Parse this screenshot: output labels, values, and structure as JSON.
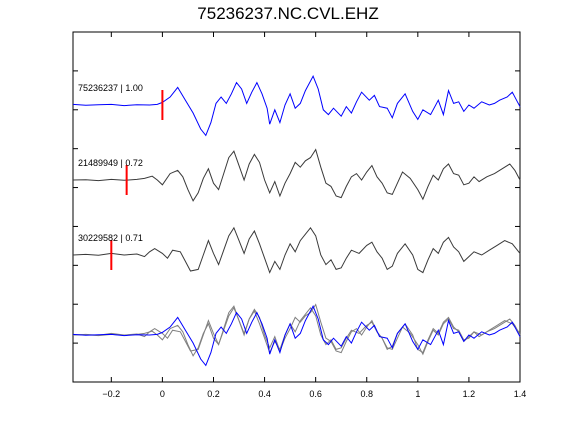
{
  "chart_data": {
    "type": "line",
    "title": "75236237.NC.CVL.EHZ",
    "xlim": [
      -0.35,
      1.4
    ],
    "xticks": [
      -0.2,
      0,
      0.2,
      0.4,
      0.6,
      0.8,
      1,
      1.2,
      1.4
    ],
    "xtick_labels": [
      "−0.2",
      "0",
      "0.2",
      "0.4",
      "0.6",
      "0.8",
      "1",
      "1.2",
      "1.4"
    ],
    "grid": false,
    "colors": {
      "reference": "#0000ff",
      "trace": "#3a3a3a",
      "overlay": "#808080",
      "pick": "#ff0000"
    },
    "traces": [
      {
        "label": "75236237 | 1.00",
        "pick_time": 0.0,
        "color": "#0000ff",
        "points": [
          [
            -0.35,
            0.02
          ],
          [
            -0.3,
            -0.01
          ],
          [
            -0.25,
            0.01
          ],
          [
            -0.2,
            0.02
          ],
          [
            -0.15,
            -0.02
          ],
          [
            -0.1,
            0.01
          ],
          [
            -0.05,
            0.0
          ],
          [
            -0.02,
            0.02
          ],
          [
            0.0,
            0.08
          ],
          [
            0.03,
            0.25
          ],
          [
            0.06,
            0.55
          ],
          [
            0.09,
            0.15
          ],
          [
            0.12,
            -0.25
          ],
          [
            0.15,
            -0.75
          ],
          [
            0.17,
            -0.95
          ],
          [
            0.19,
            -0.55
          ],
          [
            0.21,
            0.05
          ],
          [
            0.23,
            0.25
          ],
          [
            0.25,
            0.05
          ],
          [
            0.27,
            0.35
          ],
          [
            0.29,
            0.7
          ],
          [
            0.31,
            0.5
          ],
          [
            0.33,
            0.05
          ],
          [
            0.35,
            0.4
          ],
          [
            0.37,
            0.7
          ],
          [
            0.39,
            0.35
          ],
          [
            0.41,
            -0.1
          ],
          [
            0.42,
            -0.6
          ],
          [
            0.44,
            -0.15
          ],
          [
            0.46,
            -0.55
          ],
          [
            0.48,
            0.0
          ],
          [
            0.5,
            0.35
          ],
          [
            0.52,
            -0.1
          ],
          [
            0.54,
            0.05
          ],
          [
            0.56,
            0.45
          ],
          [
            0.59,
            0.9
          ],
          [
            0.61,
            0.5
          ],
          [
            0.63,
            -0.15
          ],
          [
            0.65,
            -0.3
          ],
          [
            0.67,
            -0.1
          ],
          [
            0.7,
            -0.35
          ],
          [
            0.72,
            -0.05
          ],
          [
            0.74,
            -0.25
          ],
          [
            0.76,
            0.1
          ],
          [
            0.78,
            0.4
          ],
          [
            0.81,
            0.15
          ],
          [
            0.83,
            0.3
          ],
          [
            0.85,
            -0.05
          ],
          [
            0.88,
            -0.1
          ],
          [
            0.9,
            -0.4
          ],
          [
            0.92,
            0.05
          ],
          [
            0.95,
            0.35
          ],
          [
            0.98,
            -0.2
          ],
          [
            1.0,
            -0.45
          ],
          [
            1.02,
            -0.15
          ],
          [
            1.05,
            -0.3
          ],
          [
            1.08,
            0.15
          ],
          [
            1.1,
            -0.3
          ],
          [
            1.12,
            0.45
          ],
          [
            1.14,
            0.05
          ],
          [
            1.16,
            0.1
          ],
          [
            1.18,
            -0.2
          ],
          [
            1.2,
            0.0
          ],
          [
            1.22,
            -0.1
          ],
          [
            1.25,
            0.1
          ],
          [
            1.28,
            0.0
          ],
          [
            1.3,
            0.05
          ],
          [
            1.32,
            0.15
          ],
          [
            1.35,
            0.25
          ],
          [
            1.37,
            0.4
          ],
          [
            1.39,
            0.1
          ],
          [
            1.4,
            -0.05
          ]
        ]
      },
      {
        "label": "21489949 | 0.72",
        "pick_time": -0.14,
        "color": "#3a3a3a",
        "points": [
          [
            -0.35,
            0.0
          ],
          [
            -0.3,
            0.01
          ],
          [
            -0.25,
            -0.02
          ],
          [
            -0.2,
            0.02
          ],
          [
            -0.15,
            -0.01
          ],
          [
            -0.1,
            0.02
          ],
          [
            -0.07,
            0.05
          ],
          [
            -0.04,
            0.12
          ],
          [
            -0.02,
            0.0
          ],
          [
            0.0,
            -0.15
          ],
          [
            0.03,
            0.2
          ],
          [
            0.06,
            0.3
          ],
          [
            0.08,
            0.1
          ],
          [
            0.1,
            -0.3
          ],
          [
            0.12,
            -0.65
          ],
          [
            0.14,
            -0.4
          ],
          [
            0.16,
            0.05
          ],
          [
            0.18,
            0.35
          ],
          [
            0.2,
            -0.1
          ],
          [
            0.22,
            -0.3
          ],
          [
            0.24,
            0.2
          ],
          [
            0.26,
            0.7
          ],
          [
            0.28,
            0.9
          ],
          [
            0.3,
            0.45
          ],
          [
            0.32,
            0.0
          ],
          [
            0.34,
            0.5
          ],
          [
            0.36,
            0.8
          ],
          [
            0.38,
            0.55
          ],
          [
            0.4,
            0.0
          ],
          [
            0.42,
            -0.4
          ],
          [
            0.44,
            -0.05
          ],
          [
            0.46,
            -0.5
          ],
          [
            0.48,
            -0.1
          ],
          [
            0.5,
            0.2
          ],
          [
            0.52,
            0.55
          ],
          [
            0.54,
            0.4
          ],
          [
            0.56,
            0.6
          ],
          [
            0.58,
            0.7
          ],
          [
            0.6,
            0.95
          ],
          [
            0.62,
            0.4
          ],
          [
            0.64,
            -0.1
          ],
          [
            0.66,
            -0.2
          ],
          [
            0.68,
            -0.5
          ],
          [
            0.7,
            -0.55
          ],
          [
            0.72,
            -0.2
          ],
          [
            0.74,
            0.1
          ],
          [
            0.76,
            0.2
          ],
          [
            0.78,
            0.0
          ],
          [
            0.8,
            0.25
          ],
          [
            0.82,
            0.45
          ],
          [
            0.84,
            0.1
          ],
          [
            0.86,
            -0.1
          ],
          [
            0.88,
            -0.4
          ],
          [
            0.9,
            -0.45
          ],
          [
            0.92,
            -0.1
          ],
          [
            0.94,
            0.25
          ],
          [
            0.97,
            0.05
          ],
          [
            1.0,
            -0.3
          ],
          [
            1.02,
            -0.6
          ],
          [
            1.04,
            -0.2
          ],
          [
            1.06,
            0.15
          ],
          [
            1.08,
            0.0
          ],
          [
            1.1,
            0.35
          ],
          [
            1.12,
            0.5
          ],
          [
            1.14,
            0.2
          ],
          [
            1.16,
            0.15
          ],
          [
            1.18,
            -0.15
          ],
          [
            1.2,
            -0.1
          ],
          [
            1.22,
            0.1
          ],
          [
            1.24,
            -0.05
          ],
          [
            1.27,
            0.1
          ],
          [
            1.3,
            0.2
          ],
          [
            1.33,
            0.35
          ],
          [
            1.36,
            0.5
          ],
          [
            1.38,
            0.3
          ],
          [
            1.4,
            0.0
          ]
        ]
      },
      {
        "label": "30229582 | 0.71",
        "pick_time": -0.2,
        "color": "#3a3a3a",
        "points": [
          [
            -0.35,
            0.0
          ],
          [
            -0.3,
            0.02
          ],
          [
            -0.25,
            -0.01
          ],
          [
            -0.2,
            0.05
          ],
          [
            -0.15,
            0.0
          ],
          [
            -0.1,
            0.03
          ],
          [
            -0.07,
            -0.05
          ],
          [
            -0.05,
            0.1
          ],
          [
            -0.03,
            0.2
          ],
          [
            0.0,
            0.05
          ],
          [
            0.02,
            -0.1
          ],
          [
            0.04,
            0.15
          ],
          [
            0.07,
            0.1
          ],
          [
            0.09,
            -0.2
          ],
          [
            0.11,
            -0.5
          ],
          [
            0.14,
            -0.45
          ],
          [
            0.16,
            0.0
          ],
          [
            0.18,
            0.45
          ],
          [
            0.2,
            0.05
          ],
          [
            0.22,
            -0.3
          ],
          [
            0.24,
            0.15
          ],
          [
            0.26,
            0.6
          ],
          [
            0.28,
            0.85
          ],
          [
            0.3,
            0.45
          ],
          [
            0.32,
            0.05
          ],
          [
            0.34,
            0.5
          ],
          [
            0.36,
            0.75
          ],
          [
            0.38,
            0.35
          ],
          [
            0.4,
            -0.1
          ],
          [
            0.42,
            -0.55
          ],
          [
            0.44,
            -0.2
          ],
          [
            0.46,
            -0.45
          ],
          [
            0.48,
            0.0
          ],
          [
            0.5,
            0.35
          ],
          [
            0.52,
            0.1
          ],
          [
            0.54,
            0.45
          ],
          [
            0.56,
            0.65
          ],
          [
            0.58,
            0.85
          ],
          [
            0.6,
            0.6
          ],
          [
            0.62,
            0.0
          ],
          [
            0.64,
            -0.3
          ],
          [
            0.66,
            -0.15
          ],
          [
            0.68,
            -0.45
          ],
          [
            0.7,
            -0.4
          ],
          [
            0.72,
            -0.1
          ],
          [
            0.74,
            0.15
          ],
          [
            0.77,
            0.05
          ],
          [
            0.8,
            0.3
          ],
          [
            0.82,
            0.4
          ],
          [
            0.84,
            0.1
          ],
          [
            0.86,
            -0.1
          ],
          [
            0.88,
            -0.45
          ],
          [
            0.9,
            -0.35
          ],
          [
            0.92,
            0.05
          ],
          [
            0.95,
            0.35
          ],
          [
            0.98,
            0.0
          ],
          [
            1.0,
            -0.45
          ],
          [
            1.02,
            -0.55
          ],
          [
            1.04,
            -0.15
          ],
          [
            1.06,
            0.2
          ],
          [
            1.08,
            0.05
          ],
          [
            1.1,
            0.4
          ],
          [
            1.12,
            0.55
          ],
          [
            1.14,
            0.25
          ],
          [
            1.16,
            0.1
          ],
          [
            1.18,
            -0.2
          ],
          [
            1.2,
            -0.05
          ],
          [
            1.22,
            0.1
          ],
          [
            1.25,
            0.0
          ],
          [
            1.28,
            0.15
          ],
          [
            1.31,
            0.3
          ],
          [
            1.34,
            0.45
          ],
          [
            1.37,
            0.35
          ],
          [
            1.4,
            0.05
          ]
        ]
      }
    ]
  }
}
